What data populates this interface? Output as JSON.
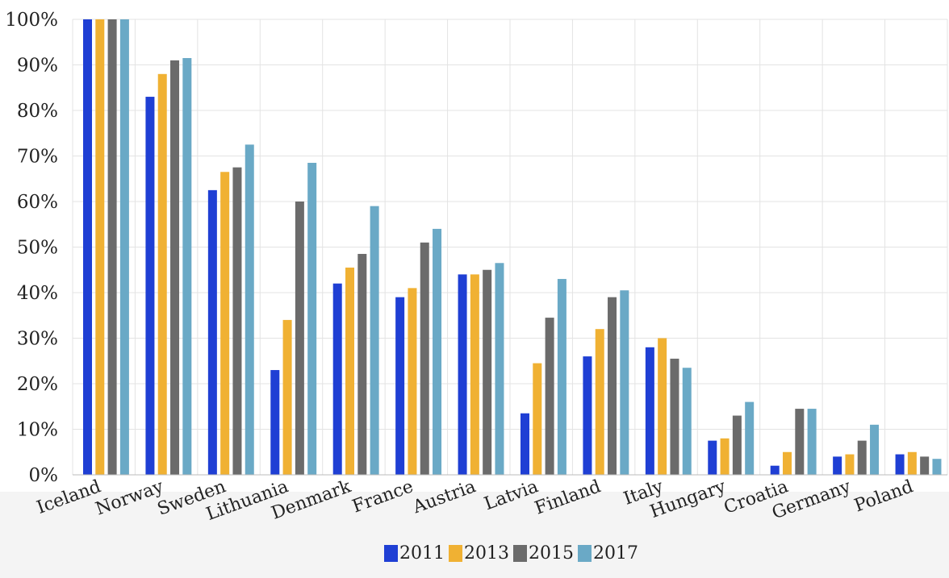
{
  "chart_data": {
    "type": "bar",
    "title": "",
    "xlabel": "",
    "ylabel": "",
    "ylim": [
      0,
      100
    ],
    "y_tick_format": "percent",
    "yticks": [
      "0%",
      "10%",
      "20%",
      "30%",
      "40%",
      "50%",
      "60%",
      "70%",
      "80%",
      "90%",
      "100%"
    ],
    "grid": true,
    "legend_position": "bottom",
    "categories": [
      "Iceland",
      "Norway",
      "Sweden",
      "Lithuania",
      "Denmark",
      "France",
      "Austria",
      "Latvia",
      "Finland",
      "Italy",
      "Hungary",
      "Croatia",
      "Germany",
      "Poland"
    ],
    "series": [
      {
        "name": "2011",
        "color": "#1f3fd4",
        "values": [
          100,
          83,
          62.5,
          23,
          42,
          39,
          44,
          13.5,
          26,
          28,
          7.5,
          2,
          4,
          4.5
        ]
      },
      {
        "name": "2013",
        "color": "#f0b133",
        "values": [
          100,
          88,
          66.5,
          34,
          45.5,
          41,
          44,
          24.5,
          32,
          30,
          8,
          5,
          4.5,
          5
        ]
      },
      {
        "name": "2015",
        "color": "#6b6b6b",
        "values": [
          100,
          91,
          67.5,
          60,
          48.5,
          51,
          45,
          34.5,
          39,
          25.5,
          13,
          14.5,
          7.5,
          4
        ]
      },
      {
        "name": "2017",
        "color": "#6aa9c6",
        "values": [
          100,
          91.5,
          72.5,
          68.5,
          59,
          54,
          46.5,
          43,
          40.5,
          23.5,
          16,
          14.5,
          11,
          3.5
        ]
      }
    ]
  }
}
